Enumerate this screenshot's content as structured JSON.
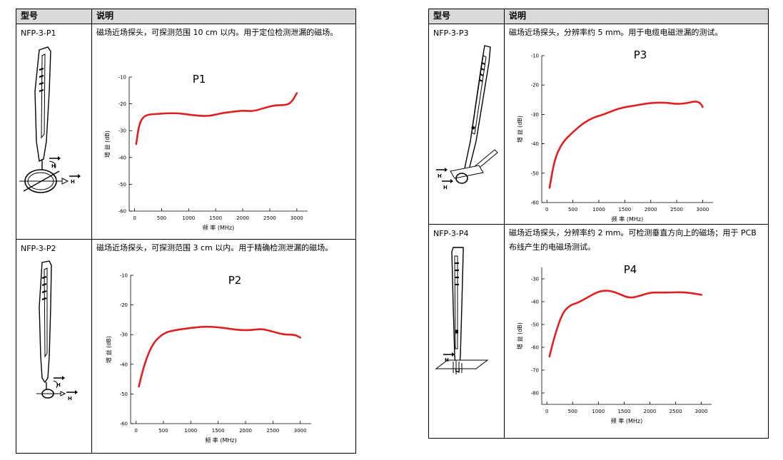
{
  "left_table": {
    "headers": {
      "model": "型号",
      "desc": "说明"
    },
    "rows": [
      {
        "model": "NFP-3-P1",
        "desc": "磁场近场探头，可探测范围 10 cm 以内。用于定位检测泄漏的磁场。"
      },
      {
        "model": "NFP-3-P2",
        "desc": "磁场近场探头，可探测范围 3 cm 以内。用于精确检测泄漏的磁场。"
      }
    ]
  },
  "right_table": {
    "headers": {
      "model": "型号",
      "desc": "说明"
    },
    "rows": [
      {
        "model": "NFP-3-P3",
        "desc": "磁场近场探头，分辨率约 5 mm。用于电缆电磁泄漏的测试。"
      },
      {
        "model": "NFP-3-P4",
        "desc": "磁场近场探头，分辨率约 2 mm。可检测垂直方向上的磁场；用于 PCB 布线产生的电磁场测试。"
      }
    ]
  },
  "probe_labels": {
    "h": "H"
  },
  "chart_data": [
    {
      "type": "line",
      "title": "P1",
      "xlabel": "频 率 (MHz)",
      "ylabel": "增 益   (dB)",
      "xlim": [
        -100,
        3200
      ],
      "ylim": [
        -60,
        -10
      ],
      "xticks": [
        "0",
        "500",
        "1000",
        "1500",
        "2000",
        "2500",
        "3000"
      ],
      "yticks": [
        "-10",
        "-20",
        "-30",
        "-40",
        "-50",
        "-60"
      ],
      "color": "#e02020",
      "x": [
        30,
        80,
        150,
        250,
        400,
        600,
        800,
        1000,
        1200,
        1400,
        1600,
        1800,
        2000,
        2200,
        2400,
        2600,
        2800,
        2900,
        3000
      ],
      "y": [
        -35,
        -28,
        -25,
        -24,
        -23.8,
        -23.5,
        -23.5,
        -24,
        -24.5,
        -24.5,
        -23.5,
        -23,
        -22.5,
        -22.8,
        -21.5,
        -20.5,
        -20.5,
        -19.5,
        -16
      ]
    },
    {
      "type": "line",
      "title": "P2",
      "xlabel": "频 率 (MHz)",
      "ylabel": "增 益   (dB)",
      "xlim": [
        -100,
        3200
      ],
      "ylim": [
        -60,
        -10
      ],
      "xticks": [
        "0",
        "500",
        "1000",
        "1500",
        "2000",
        "2500",
        "3000"
      ],
      "yticks": [
        "-10",
        "-20",
        "-30",
        "-40",
        "-50",
        "-60"
      ],
      "color": "#e02020",
      "x": [
        50,
        150,
        300,
        500,
        700,
        900,
        1100,
        1300,
        1500,
        1700,
        1900,
        2100,
        2300,
        2500,
        2700,
        2900,
        3000
      ],
      "y": [
        -47.5,
        -40,
        -33,
        -29.5,
        -28.5,
        -28,
        -27.5,
        -27.3,
        -27.5,
        -28,
        -28.5,
        -28.5,
        -28,
        -29,
        -30,
        -30,
        -31
      ]
    },
    {
      "type": "line",
      "title": "P3",
      "xlabel": "频 率 (MHz)",
      "ylabel": "增 益   (dB)",
      "xlim": [
        -100,
        3200
      ],
      "ylim": [
        -60,
        -10
      ],
      "xticks": [
        "0",
        "500",
        "1000",
        "1500",
        "2000",
        "2500",
        "3000"
      ],
      "yticks": [
        "-10",
        "-20",
        "-30",
        "-40",
        "-50",
        "-60"
      ],
      "color": "#e02020",
      "x": [
        50,
        150,
        300,
        500,
        700,
        900,
        1100,
        1300,
        1500,
        1700,
        1900,
        2100,
        2300,
        2500,
        2700,
        2850,
        2950,
        3000
      ],
      "y": [
        -55,
        -45,
        -39.5,
        -36,
        -33,
        -31,
        -30,
        -28.5,
        -27.5,
        -27,
        -26.3,
        -26,
        -26,
        -26.5,
        -26.2,
        -25.5,
        -26,
        -27.5
      ]
    },
    {
      "type": "line",
      "title": "P4",
      "xlabel": "频 率 (MHz)",
      "ylabel": "增 益   (dB)",
      "xlim": [
        -100,
        3200
      ],
      "ylim": [
        -85,
        -25
      ],
      "xticks": [
        "0",
        "500",
        "1000",
        "1500",
        "2000",
        "2500",
        "3000"
      ],
      "yticks": [
        "-30",
        "-40",
        "-50",
        "-60",
        "-70",
        "-80"
      ],
      "color": "#e02020",
      "x": [
        50,
        150,
        300,
        450,
        600,
        800,
        1000,
        1200,
        1400,
        1600,
        1800,
        2000,
        2200,
        2400,
        2600,
        2800,
        3000
      ],
      "y": [
        -64,
        -55,
        -45,
        -41.5,
        -40.5,
        -38,
        -35.5,
        -35,
        -36.5,
        -38.5,
        -37.5,
        -36,
        -36,
        -36,
        -35.8,
        -36.2,
        -37
      ]
    }
  ]
}
